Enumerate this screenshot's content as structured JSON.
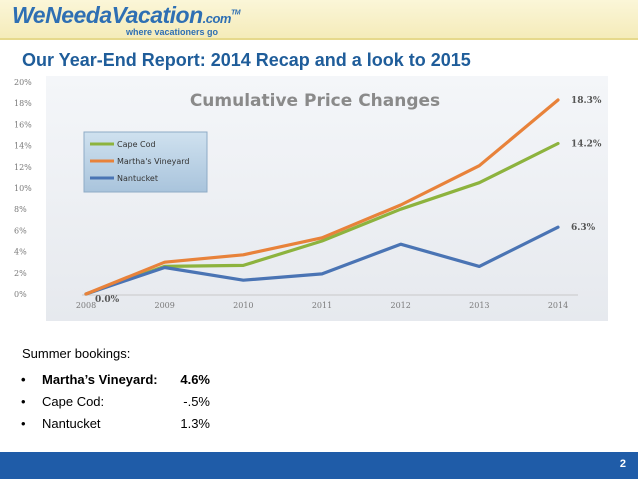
{
  "logo": {
    "main": "WeNeedaVacation",
    "dotcom": ".com",
    "tm": "TM",
    "tagline": "where vacationers go"
  },
  "slide": {
    "title": "Our Year-End Report: 2014 Recap and a look to 2015",
    "page_number": "2"
  },
  "chart_data": {
    "type": "line",
    "title": "Cumulative Price Changes",
    "categories": [
      "2008",
      "2009",
      "2010",
      "2011",
      "2012",
      "2013",
      "2014"
    ],
    "y_tick_labels": [
      "0%",
      "2%",
      "4%",
      "6%",
      "8%",
      "10%",
      "12%",
      "14%",
      "16%",
      "18%",
      "20%"
    ],
    "ylim": [
      0,
      20
    ],
    "legend_position": "top-left",
    "grid": false,
    "series": [
      {
        "name": "Cape Cod",
        "color": "#8db33e",
        "values": [
          0,
          2.6,
          2.7,
          5.0,
          8.0,
          10.5,
          14.2
        ],
        "end_label": "14.2%"
      },
      {
        "name": "Martha's Vineyard",
        "color": "#e8823a",
        "values": [
          0,
          3.0,
          3.7,
          5.3,
          8.4,
          12.1,
          18.3
        ],
        "end_label": "18.3%"
      },
      {
        "name": "Nantucket",
        "color": "#4a74b4",
        "values": [
          0,
          2.5,
          1.3,
          1.9,
          4.7,
          2.6,
          6.3
        ],
        "end_label": "6.3%"
      }
    ],
    "annotations": [
      {
        "text": "0.0%",
        "category": "2008",
        "value": 0
      }
    ]
  },
  "bookings": {
    "heading": "Summer bookings:",
    "bullet": "•",
    "items": [
      {
        "name": "Martha’s Vineyard:",
        "value": "4.6%"
      },
      {
        "name": "Cape Cod:",
        "value": "-.5%"
      },
      {
        "name": "Nantucket",
        "value": "1.3%"
      }
    ]
  }
}
